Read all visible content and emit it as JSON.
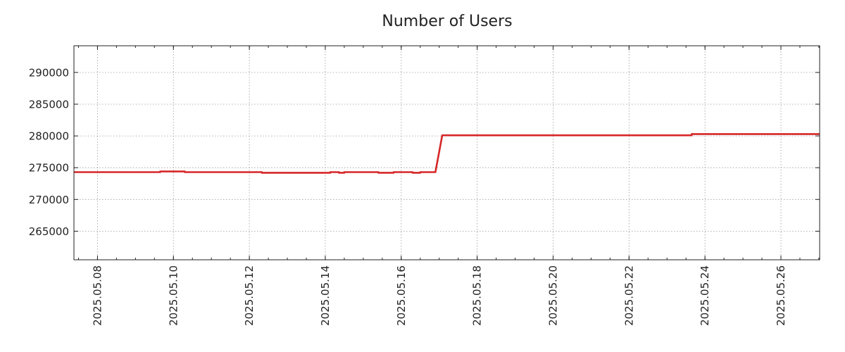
{
  "chart_data": {
    "type": "line",
    "title": "Number of Users",
    "xlabel": "",
    "ylabel": "",
    "x_range": [
      "2025-05-07.38",
      "2025-05-27.02"
    ],
    "ylim": [
      260500,
      294200
    ],
    "y_ticks": [
      265000,
      270000,
      275000,
      280000,
      285000,
      290000
    ],
    "x_ticks": [
      "2025.05.08",
      "2025.05.10",
      "2025.05.12",
      "2025.05.14",
      "2025.05.16",
      "2025.05.18",
      "2025.05.20",
      "2025.05.22",
      "2025.05.24",
      "2025.05.26"
    ],
    "grid": true,
    "legend": "none",
    "series": [
      {
        "color": "#d62728",
        "x": [
          "2025-05-07.38",
          "2025-05-09.65",
          "2025-05-09.65",
          "2025-05-10.30",
          "2025-05-10.30",
          "2025-05-12.33",
          "2025-05-12.33",
          "2025-05-14.13",
          "2025-05-14.13",
          "2025-05-14.36",
          "2025-05-14.36",
          "2025-05-14.50",
          "2025-05-14.50",
          "2025-05-15.40",
          "2025-05-15.40",
          "2025-05-15.80",
          "2025-05-15.80",
          "2025-05-16.30",
          "2025-05-16.30",
          "2025-05-16.50",
          "2025-05-16.50",
          "2025-05-16.90",
          "2025-05-17.08",
          "2025-05-23.65",
          "2025-05-23.65",
          "2025-05-27.02"
        ],
        "y": [
          274300,
          274300,
          274400,
          274400,
          274300,
          274300,
          274200,
          274200,
          274300,
          274300,
          274200,
          274200,
          274300,
          274300,
          274200,
          274200,
          274300,
          274300,
          274200,
          274200,
          274300,
          274300,
          280100,
          280100,
          280300,
          280300
        ]
      }
    ]
  }
}
